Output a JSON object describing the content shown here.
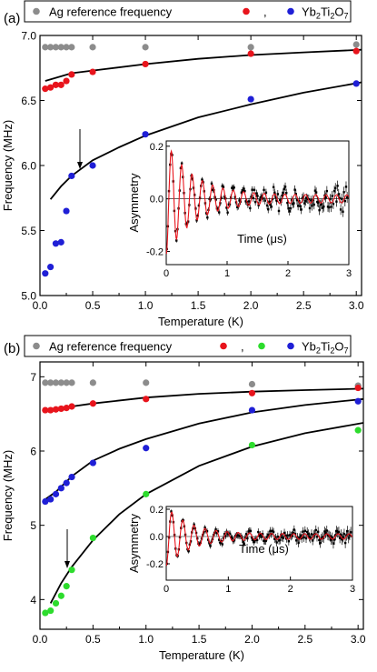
{
  "chart_data": [
    {
      "type": "scatter",
      "panel_label": "(a)",
      "legend": {
        "placement": "top",
        "entries": [
          "Ag reference frequency",
          ",",
          "Yb2Ti2O7"
        ]
      },
      "xlabel": "Temperature (K)",
      "ylabel": "Frequency (MHz)",
      "xlim": [
        0.0,
        3.05
      ],
      "ylim": [
        5.0,
        7.0
      ],
      "xticks": [
        "0.0",
        "0.5",
        "1.0",
        "1.5",
        "2.0",
        "2.5",
        "3.0"
      ],
      "yticks": [
        "5.0",
        "5.5",
        "6.0",
        "6.5",
        "7.0"
      ],
      "series": [
        {
          "color": "#8c8c8c",
          "x": [
            0.05,
            0.1,
            0.15,
            0.2,
            0.25,
            0.3,
            0.5,
            1.0,
            2.0,
            3.0
          ],
          "y": [
            6.91,
            6.91,
            6.91,
            6.91,
            6.91,
            6.91,
            6.91,
            6.91,
            6.91,
            6.93
          ]
        },
        {
          "color": "#e8141c",
          "x": [
            0.05,
            0.1,
            0.15,
            0.2,
            0.25,
            0.3,
            0.5,
            1.0,
            2.0,
            3.0
          ],
          "y": [
            6.59,
            6.6,
            6.62,
            6.62,
            6.65,
            6.7,
            6.72,
            6.78,
            6.86,
            6.88
          ]
        },
        {
          "color": "#1f1fd6",
          "x": [
            0.05,
            0.1,
            0.15,
            0.2,
            0.25,
            0.3,
            0.5,
            1.0,
            2.0,
            3.0
          ],
          "y": [
            5.17,
            5.22,
            5.4,
            5.41,
            5.65,
            5.92,
            6.0,
            6.24,
            6.51,
            6.63
          ]
        }
      ],
      "fits": [
        {
          "color": "#000000",
          "x": [
            0.05,
            0.3,
            0.5,
            1.0,
            1.5,
            2.0,
            2.5,
            3.05
          ],
          "y": [
            6.65,
            6.71,
            6.73,
            6.78,
            6.82,
            6.85,
            6.87,
            6.89
          ]
        },
        {
          "color": "#000000",
          "x": [
            0.1,
            0.2,
            0.3,
            0.5,
            0.75,
            1.0,
            1.5,
            2.0,
            2.5,
            3.05
          ],
          "y": [
            5.74,
            5.84,
            5.92,
            6.04,
            6.14,
            6.23,
            6.37,
            6.47,
            6.56,
            6.64
          ]
        }
      ],
      "arrow_x": 0.3,
      "inset": {
        "xlabel": "Time (μs)",
        "ylabel": "Asymmetry",
        "xlim": [
          0,
          3
        ],
        "ylim": [
          -0.25,
          0.22
        ],
        "xticks": [
          "0",
          "1",
          "2",
          "3"
        ],
        "yticks": [
          "0.2",
          "0.0",
          "-0.2"
        ],
        "oscillation_freq_mhz": 5.9,
        "initial_amplitude": 0.2,
        "decay_rate": 2.2,
        "baseline_amplitude": 0.015
      }
    },
    {
      "type": "scatter",
      "panel_label": "(b)",
      "legend": {
        "placement": "top",
        "entries": [
          "Ag reference frequency",
          ",",
          "Yb2Ti2O7"
        ]
      },
      "xlabel": "Temperature (K)",
      "ylabel": "Frequency (MHz)",
      "xlim": [
        0.0,
        3.05
      ],
      "ylim": [
        3.6,
        7.2
      ],
      "xticks": [
        "0.0",
        "0.5",
        "1.0",
        "1.5",
        "2.0",
        "2.5",
        "3.0"
      ],
      "yticks": [
        "4",
        "5",
        "6",
        "7"
      ],
      "series": [
        {
          "color": "#8c8c8c",
          "x": [
            0.05,
            0.1,
            0.15,
            0.2,
            0.25,
            0.3,
            0.5,
            1.0,
            2.0,
            3.0
          ],
          "y": [
            6.92,
            6.92,
            6.92,
            6.92,
            6.92,
            6.92,
            6.92,
            6.92,
            6.9,
            6.88
          ]
        },
        {
          "color": "#e8141c",
          "x": [
            0.05,
            0.1,
            0.15,
            0.2,
            0.25,
            0.3,
            0.5,
            1.0,
            2.0,
            3.0
          ],
          "y": [
            6.55,
            6.55,
            6.56,
            6.57,
            6.58,
            6.6,
            6.64,
            6.7,
            6.78,
            6.85
          ]
        },
        {
          "color": "#2ddc2d",
          "x": [
            0.05,
            0.1,
            0.15,
            0.2,
            0.25,
            0.3,
            0.5,
            1.0,
            2.0,
            3.0
          ],
          "y": [
            3.82,
            3.85,
            3.95,
            4.05,
            4.18,
            4.4,
            4.83,
            5.42,
            6.08,
            6.28
          ]
        },
        {
          "color": "#1f1fd6",
          "x": [
            0.05,
            0.1,
            0.15,
            0.2,
            0.25,
            0.3,
            0.5,
            1.0,
            2.0,
            3.0
          ],
          "y": [
            5.32,
            5.35,
            5.42,
            5.5,
            5.57,
            5.65,
            5.84,
            6.04,
            6.55,
            6.67
          ]
        }
      ],
      "fits": [
        {
          "color": "#000000",
          "x": [
            0.05,
            0.3,
            0.5,
            1.0,
            1.5,
            2.0,
            2.5,
            3.05
          ],
          "y": [
            6.56,
            6.6,
            6.64,
            6.72,
            6.77,
            6.8,
            6.82,
            6.84
          ]
        },
        {
          "color": "#000000",
          "x": [
            0.05,
            0.15,
            0.3,
            0.5,
            0.75,
            1.0,
            1.5,
            2.0,
            2.5,
            3.05
          ],
          "y": [
            5.35,
            5.45,
            5.66,
            5.87,
            6.03,
            6.16,
            6.37,
            6.52,
            6.62,
            6.7
          ]
        },
        {
          "color": "#000000",
          "x": [
            0.1,
            0.2,
            0.3,
            0.5,
            0.75,
            1.0,
            1.5,
            2.0,
            2.5,
            3.05
          ],
          "y": [
            3.95,
            4.22,
            4.44,
            4.8,
            5.15,
            5.42,
            5.8,
            6.06,
            6.24,
            6.38
          ]
        }
      ],
      "arrow_x": 0.2,
      "inset": {
        "xlabel": "Time (μs)",
        "ylabel": "Asymmetry",
        "xlim": [
          0,
          3
        ],
        "ylim": [
          -0.32,
          0.22
        ],
        "xticks": [
          "0",
          "1",
          "2",
          "3"
        ],
        "yticks": [
          "0.2",
          "0.0",
          "-0.2"
        ],
        "oscillation_freq_mhz": 5.6,
        "initial_amplitude": 0.2,
        "decay_rate": 2.6,
        "baseline_amplitude": 0.02
      }
    }
  ]
}
